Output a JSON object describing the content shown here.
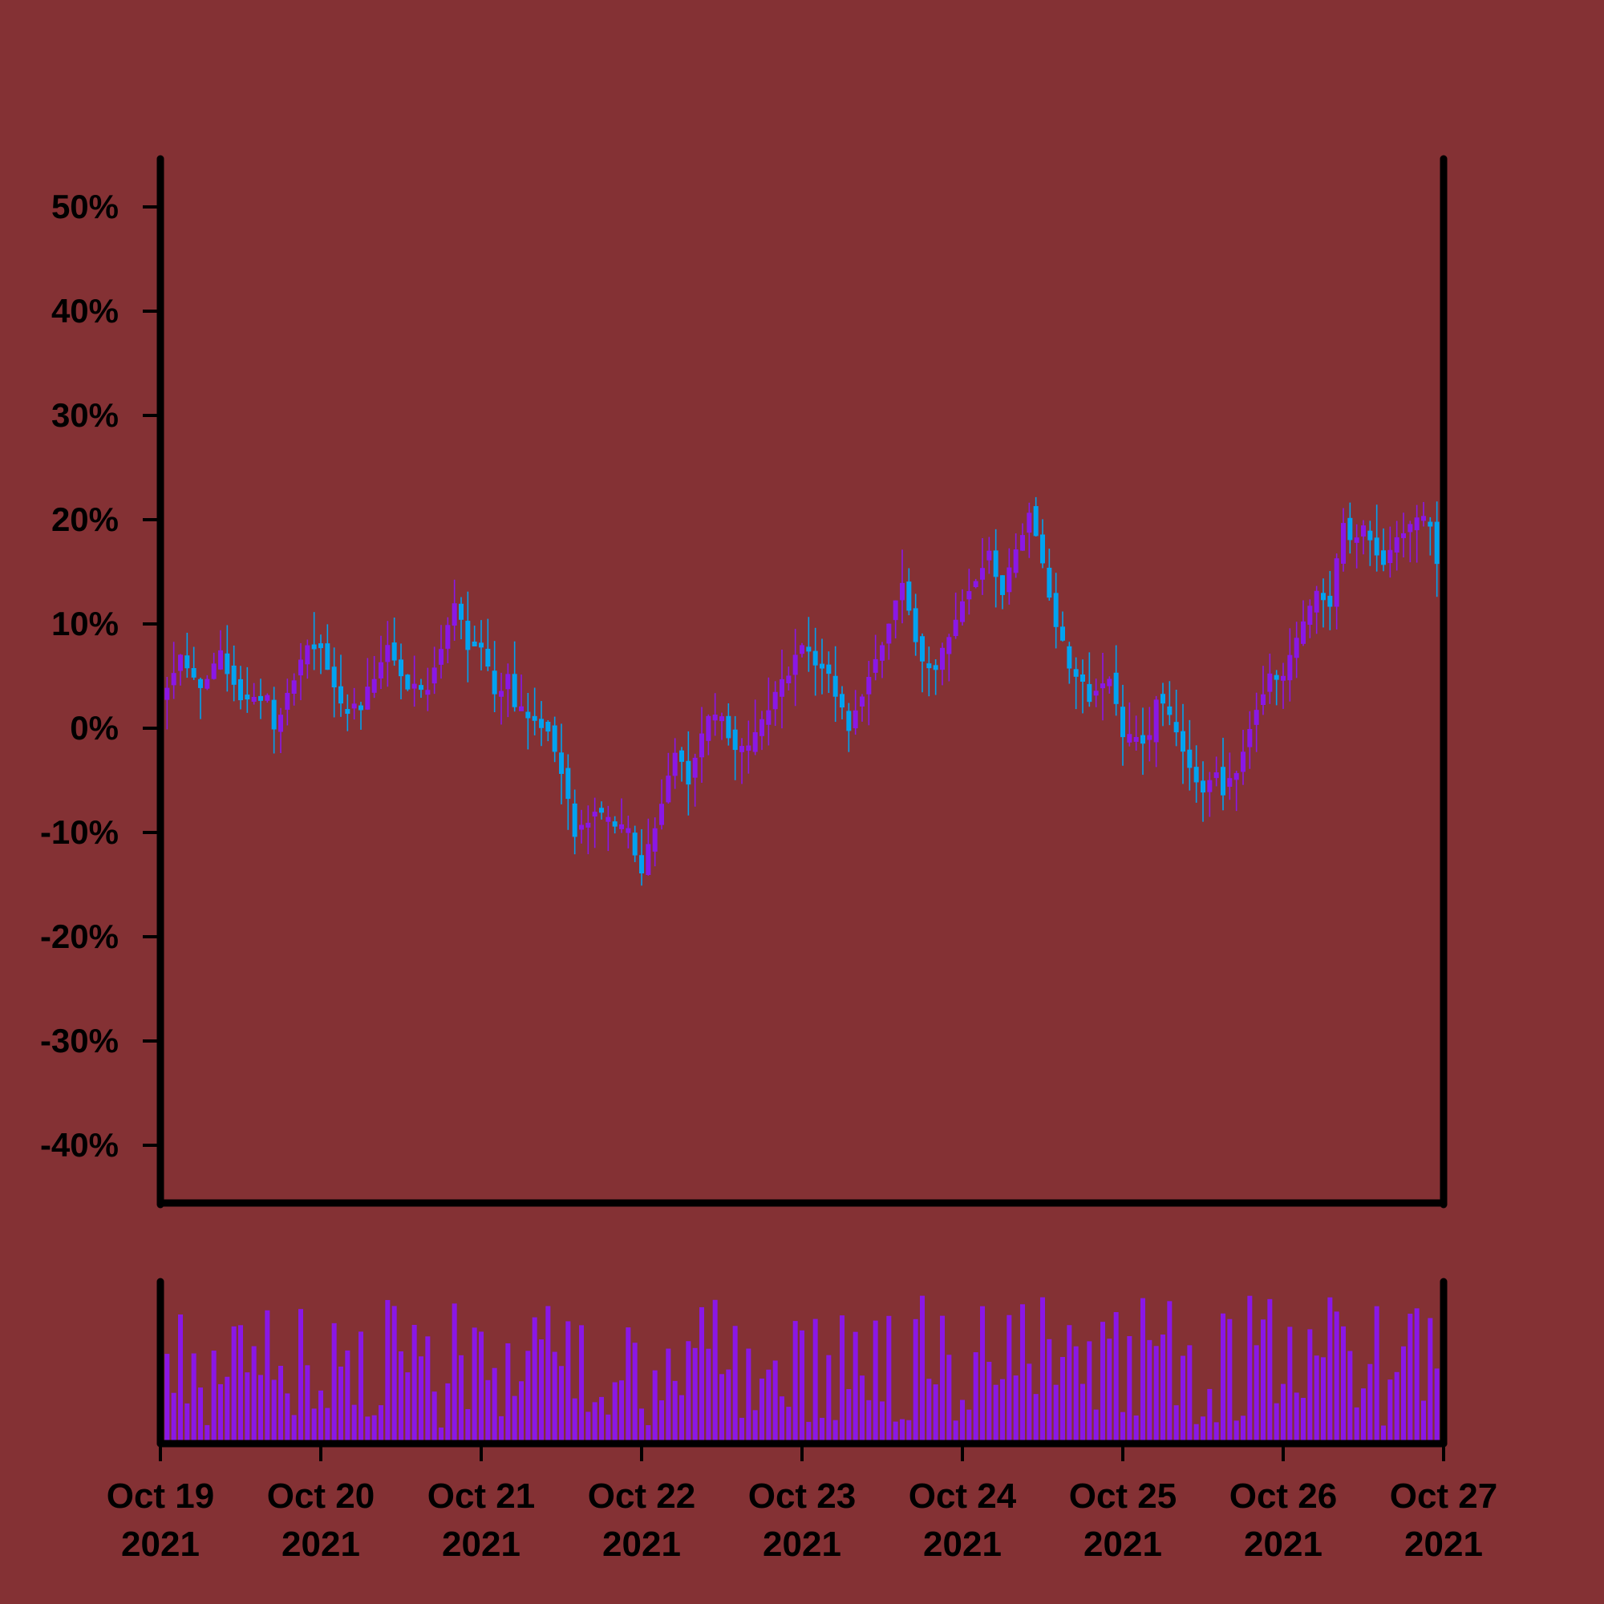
{
  "chart_data": {
    "type": "candlestick",
    "title": "",
    "xlabel": "",
    "ylabel": "",
    "background": "#843134",
    "up_color": "#8a17e6",
    "down_color": "#00a3f0",
    "volume_color": "#8a17e6",
    "axis_color": "#000000",
    "grid": false,
    "legend": "none",
    "ylim": [
      -45,
      55
    ],
    "y_ticks": [
      50,
      40,
      30,
      20,
      10,
      0,
      -10,
      -20,
      -30,
      -40
    ],
    "y_tick_labels": [
      "50%",
      "40%",
      "30%",
      "20%",
      "10%",
      "0%",
      "-10%",
      "-20%",
      "-30%",
      "-40%"
    ],
    "x_range": [
      "2021-10-19",
      "2021-10-27"
    ],
    "x_ticks": [
      {
        "date": "2021-10-19",
        "line1": "Oct 19",
        "line2": "2021"
      },
      {
        "date": "2021-10-20",
        "line1": "Oct 20",
        "line2": "2021"
      },
      {
        "date": "2021-10-21",
        "line1": "Oct 21",
        "line2": "2021"
      },
      {
        "date": "2021-10-22",
        "line1": "Oct 22",
        "line2": "2021"
      },
      {
        "date": "2021-10-23",
        "line1": "Oct 23",
        "line2": "2021"
      },
      {
        "date": "2021-10-24",
        "line1": "Oct 24",
        "line2": "2021"
      },
      {
        "date": "2021-10-25",
        "line1": "Oct 25",
        "line2": "2021"
      },
      {
        "date": "2021-10-26",
        "line1": "Oct 26",
        "line2": "2021"
      },
      {
        "date": "2021-10-27",
        "line1": "Oct 27",
        "line2": "2021"
      }
    ],
    "close_path": [
      [
        "2021-10-19 00:00",
        3
      ],
      [
        "2021-10-19 03:00",
        7
      ],
      [
        "2021-10-19 06:00",
        4
      ],
      [
        "2021-10-19 09:00",
        7
      ],
      [
        "2021-10-19 12:00",
        3
      ],
      [
        "2021-10-19 16:00",
        3
      ],
      [
        "2021-10-19 17:00",
        0
      ],
      [
        "2021-10-19 22:00",
        8
      ],
      [
        "2021-10-20 00:00",
        8
      ],
      [
        "2021-10-20 03:00",
        2
      ],
      [
        "2021-10-20 04:00",
        2
      ],
      [
        "2021-10-20 06:00",
        2
      ],
      [
        "2021-10-20 10:00",
        8
      ],
      [
        "2021-10-20 13:00",
        4
      ],
      [
        "2021-10-20 16:00",
        4
      ],
      [
        "2021-10-20 20:00",
        12
      ],
      [
        "2021-10-20 22:00",
        8
      ],
      [
        "2021-10-21 00:00",
        8
      ],
      [
        "2021-10-21 02:00",
        3
      ],
      [
        "2021-10-21 04:00",
        5
      ],
      [
        "2021-10-21 05:00",
        2
      ],
      [
        "2021-10-21 10:00",
        0
      ],
      [
        "2021-10-21 12:00",
        -4
      ],
      [
        "2021-10-21 14:00",
        -10
      ],
      [
        "2021-10-21 17:00",
        -8
      ],
      [
        "2021-10-21 22:00",
        -10
      ],
      [
        "2021-10-22 00:00",
        -14
      ],
      [
        "2021-10-22 05:00",
        -2
      ],
      [
        "2021-10-22 07:00",
        -5
      ],
      [
        "2021-10-22 10:00",
        1
      ],
      [
        "2021-10-22 12:00",
        1
      ],
      [
        "2021-10-22 14:00",
        -2
      ],
      [
        "2021-10-22 16:00",
        -2
      ],
      [
        "2021-10-22 20:00",
        3
      ],
      [
        "2021-10-23 00:00",
        8
      ],
      [
        "2021-10-23 04:00",
        5
      ],
      [
        "2021-10-23 06:00",
        2
      ],
      [
        "2021-10-23 07:00",
        0
      ],
      [
        "2021-10-23 08:00",
        2
      ],
      [
        "2021-10-23 12:00",
        8
      ],
      [
        "2021-10-23 15:00",
        14
      ],
      [
        "2021-10-23 18:00",
        6
      ],
      [
        "2021-10-23 19:00",
        6
      ],
      [
        "2021-10-23 20:00",
        6
      ],
      [
        "2021-10-24 00:00",
        12
      ],
      [
        "2021-10-24 04:00",
        17
      ],
      [
        "2021-10-24 06:00",
        13
      ],
      [
        "2021-10-24 10:00",
        21
      ],
      [
        "2021-10-24 14:00",
        10
      ],
      [
        "2021-10-24 16:00",
        6
      ],
      [
        "2021-10-24 19:00",
        3
      ],
      [
        "2021-10-24 22:00",
        5
      ],
      [
        "2021-10-25 00:00",
        -1
      ],
      [
        "2021-10-25 01:00",
        -1
      ],
      [
        "2021-10-25 04:00",
        -1
      ],
      [
        "2021-10-25 05:00",
        3
      ],
      [
        "2021-10-25 07:00",
        1
      ],
      [
        "2021-10-25 10:00",
        -4
      ],
      [
        "2021-10-25 12:00",
        -6
      ],
      [
        "2021-10-25 14:00",
        -4
      ],
      [
        "2021-10-25 15:00",
        -6
      ],
      [
        "2021-10-25 17:00",
        -4
      ],
      [
        "2021-10-25 20:00",
        2
      ],
      [
        "2021-10-25 22:00",
        5
      ],
      [
        "2021-10-26 00:00",
        5
      ],
      [
        "2021-10-26 03:00",
        10
      ],
      [
        "2021-10-26 05:00",
        13
      ],
      [
        "2021-10-26 07:00",
        12
      ],
      [
        "2021-10-26 09:00",
        20
      ],
      [
        "2021-10-26 10:00",
        18
      ],
      [
        "2021-10-26 12:00",
        19
      ],
      [
        "2021-10-26 15:00",
        16
      ],
      [
        "2021-10-26 17:00",
        18
      ],
      [
        "2021-10-26 20:00",
        20
      ],
      [
        "2021-10-26 22:00",
        20
      ],
      [
        "2021-10-26 23:00",
        16
      ]
    ],
    "volume_note": "volume bars shown in lower panel, unlabeled scale"
  }
}
